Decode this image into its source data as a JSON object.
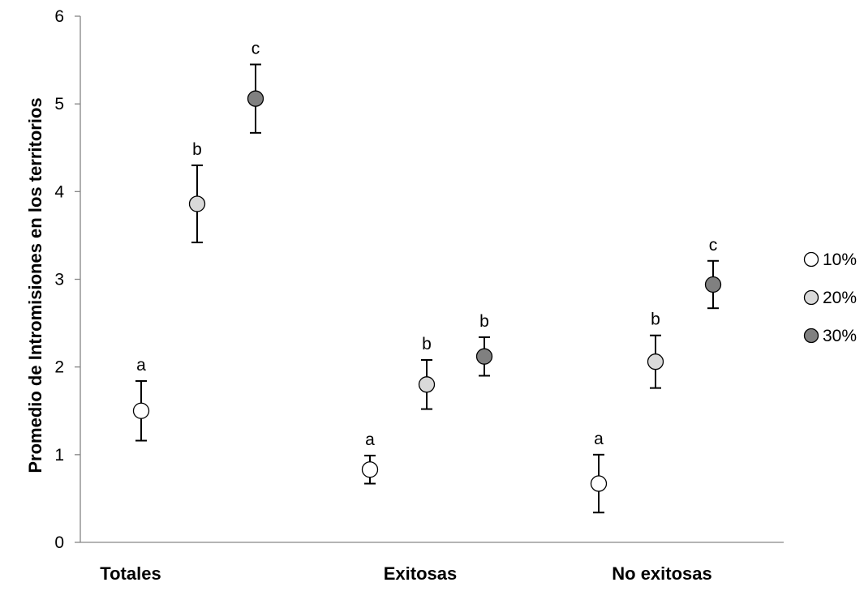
{
  "chart_data": {
    "type": "scatter",
    "title": "",
    "xlabel": "",
    "ylabel": "Promedio de Intromisiones en los territorios",
    "ylim": [
      0,
      6
    ],
    "yticks": [
      0,
      1,
      2,
      3,
      4,
      5,
      6
    ],
    "grid": false,
    "legend_position": "right",
    "categories": [
      "Totales",
      "Exitosas",
      "No exitosas"
    ],
    "series": [
      {
        "name": "10%",
        "color": "#ffffff",
        "values": [
          1.5,
          0.83,
          0.67
        ],
        "error": [
          0.34,
          0.16,
          0.33
        ],
        "labels": [
          "a",
          "a",
          "a"
        ]
      },
      {
        "name": "20%",
        "color": "#d9d9d9",
        "values": [
          3.86,
          1.8,
          2.06
        ],
        "error": [
          0.44,
          0.28,
          0.3
        ],
        "labels": [
          "b",
          "b",
          "b"
        ]
      },
      {
        "name": "30%",
        "color": "#808080",
        "values": [
          5.06,
          2.12,
          2.94
        ],
        "error": [
          0.39,
          0.22,
          0.27
        ],
        "labels": [
          "c",
          "b",
          "c"
        ]
      }
    ]
  }
}
